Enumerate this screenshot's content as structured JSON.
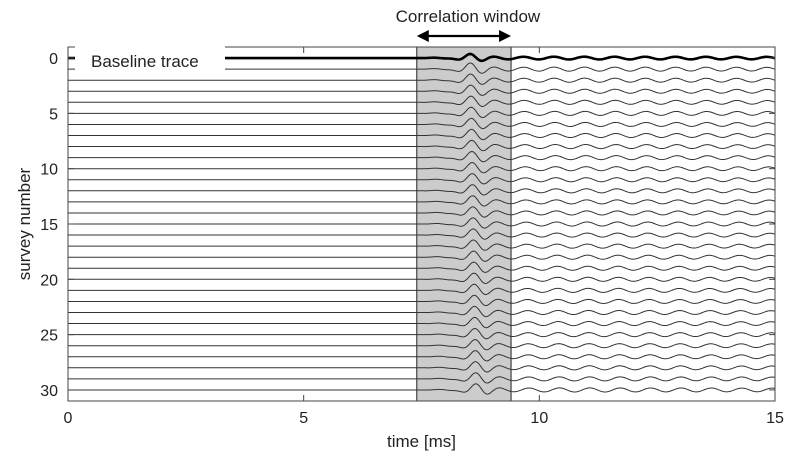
{
  "chart_data": {
    "type": "line",
    "title": "",
    "xlabel": "time [ms]",
    "ylabel": "survey number",
    "xlim": [
      0,
      15
    ],
    "ylim": [
      31,
      -1
    ],
    "y_axis_reversed": true,
    "grid": false,
    "xticks": [
      0,
      5,
      10,
      15
    ],
    "yticks": [
      0,
      5,
      10,
      15,
      20,
      25,
      30
    ],
    "survey_numbers": [
      0,
      1,
      2,
      3,
      4,
      5,
      6,
      7,
      8,
      9,
      10,
      11,
      12,
      13,
      14,
      15,
      16,
      17,
      18,
      19,
      20,
      21,
      22,
      23,
      24,
      25,
      26,
      27,
      28,
      29,
      30
    ],
    "baseline_trace": {
      "name": "Baseline trace",
      "survey": 0,
      "line_color": "#000000"
    },
    "trace_onset_ms": 7.5,
    "trace_color": "#333333",
    "correlation_window": {
      "label": "Correlation window",
      "start_ms": 7.4,
      "end_ms": 9.4,
      "fill_color": "#cccccc"
    },
    "annotations": [
      "Correlation window",
      "Baseline trace"
    ]
  }
}
